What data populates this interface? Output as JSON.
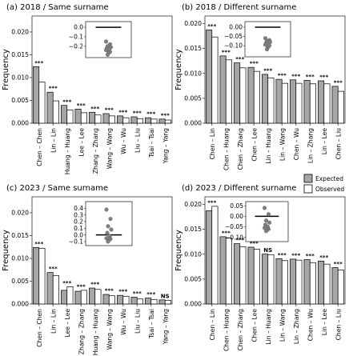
{
  "chart_data": [
    {
      "type": "bar",
      "title": "(a) 2018 / Same surname",
      "ylabel": "Frequency",
      "ylim": [
        0,
        0.0235
      ],
      "yticks": [
        "0.000",
        "0.005",
        "0.010",
        "0.015",
        "0.020"
      ],
      "categories": [
        "Chen – Chen",
        "Lin – Lin",
        "Huang – Huang",
        "Lee – Lee",
        "Zhang – Zhang",
        "Wang – Wang",
        "Wu – Wu",
        "Liu – Liu",
        "Tsai – Tsai",
        "Yang – Yang"
      ],
      "series": [
        {
          "name": "Expected",
          "values": [
            0.0124,
            0.0068,
            0.0039,
            0.0031,
            0.0024,
            0.0021,
            0.0016,
            0.0014,
            0.0012,
            0.0009
          ]
        },
        {
          "name": "Observed",
          "values": [
            0.009,
            0.0049,
            0.0029,
            0.0023,
            0.0018,
            0.0016,
            0.0012,
            0.001,
            0.0009,
            0.0007
          ]
        }
      ],
      "significance": [
        "***",
        "***",
        "***",
        "***",
        "***",
        "***",
        "***",
        "***",
        "***",
        "***"
      ],
      "inset": {
        "ylim": [
          -0.32,
          0.06
        ],
        "yticks": [
          "0.0",
          "−0.1",
          "−0.2"
        ],
        "line": 0.0,
        "points": [
          -0.15,
          -0.18,
          -0.2,
          -0.21,
          -0.22,
          -0.23,
          -0.24,
          -0.26,
          -0.27,
          -0.29
        ]
      }
    },
    {
      "type": "bar",
      "title": "(b) 2018 / Different surname",
      "ylabel": "Frequency",
      "ylim": [
        0,
        0.0215
      ],
      "yticks": [
        "0.000",
        "0.005",
        "0.010",
        "0.015",
        "0.020"
      ],
      "categories": [
        "Chen – Lin",
        "Chen – Huang",
        "Chen – Zhang",
        "Chen – Lee",
        "Lin – Huang",
        "Lin – Wang",
        "Chen – Wu",
        "Lin – Zhang",
        "Lin – Lee",
        "Chen – Liu"
      ],
      "series": [
        {
          "name": "Expected",
          "values": [
            0.0187,
            0.0135,
            0.0121,
            0.0112,
            0.0098,
            0.0088,
            0.0087,
            0.0086,
            0.0085,
            0.0074
          ]
        },
        {
          "name": "Observed",
          "values": [
            0.0173,
            0.0127,
            0.0111,
            0.0104,
            0.0091,
            0.008,
            0.008,
            0.0079,
            0.0079,
            0.0064
          ]
        }
      ],
      "significance": [
        "***",
        "***",
        "***",
        "***",
        "***",
        "***",
        "***",
        "***",
        "***",
        "***"
      ],
      "inset": {
        "ylim": [
          -0.16,
          0.03
        ],
        "yticks": [
          "0.00",
          "−0.05",
          "−0.10"
        ],
        "line": 0.0,
        "points": [
          -0.06,
          -0.07,
          -0.075,
          -0.08,
          -0.085,
          -0.09,
          -0.095,
          -0.1,
          -0.11,
          -0.12
        ]
      }
    },
    {
      "type": "bar",
      "title": "(c) 2023 / Same surname",
      "ylabel": "Frequency",
      "ylim": [
        0,
        0.0235
      ],
      "yticks": [
        "0.000",
        "0.005",
        "0.010",
        "0.015",
        "0.020"
      ],
      "categories": [
        "Chen – Chen",
        "Lin – Lin",
        "Lee – Lee",
        "Zhang – Zhang",
        "Huang – Huang",
        "Wang – Wang",
        "Wu – Wu",
        "Liu – Liu",
        "Tsai – Tsai",
        "Yang – Yang"
      ],
      "series": [
        {
          "name": "Expected",
          "values": [
            0.0124,
            0.0069,
            0.003,
            0.0028,
            0.0035,
            0.0021,
            0.0019,
            0.0015,
            0.0013,
            0.0009
          ]
        },
        {
          "name": "Observed",
          "values": [
            0.0122,
            0.0062,
            0.0038,
            0.003,
            0.0032,
            0.0018,
            0.0017,
            0.0011,
            0.001,
            0.0008
          ]
        }
      ],
      "significance": [
        "***",
        "***",
        "***",
        "***",
        "***",
        "***",
        "***",
        "***",
        "***",
        "NS"
      ],
      "inset": {
        "ylim": [
          -0.16,
          0.5
        ],
        "yticks": [
          "0.4",
          "0.3",
          "0.2",
          "0.1",
          "0.0",
          "−0.1"
        ],
        "line": 0.0,
        "points": [
          0.38,
          0.24,
          0.13,
          0.08,
          0.03,
          -0.02,
          -0.05,
          -0.06,
          -0.08,
          -0.1
        ]
      }
    },
    {
      "type": "bar",
      "title": "(d) 2023 / Different surname",
      "ylabel": "Frequency",
      "ylim": [
        0,
        0.0215
      ],
      "yticks": [
        "0.000",
        "0.005",
        "0.010",
        "0.015",
        "0.020"
      ],
      "categories": [
        "Chen – Lin",
        "Chen – Huang",
        "Chen – Zhang",
        "Chen – Lee",
        "Lin – Huang",
        "Lin – Wang",
        "Lin – Zhang",
        "Chen – Wu",
        "Lin – Lee",
        "Chen – Liu"
      ],
      "series": [
        {
          "name": "Expected",
          "values": [
            0.0187,
            0.0135,
            0.0121,
            0.0114,
            0.01,
            0.0091,
            0.009,
            0.0089,
            0.0086,
            0.0073
          ]
        },
        {
          "name": "Observed",
          "values": [
            0.0196,
            0.0132,
            0.0115,
            0.011,
            0.0099,
            0.0087,
            0.0088,
            0.0083,
            0.008,
            0.0068
          ]
        }
      ],
      "significance": [
        "***",
        "***",
        "***",
        "***",
        "NS",
        "***",
        "***",
        "***",
        "***",
        "***"
      ],
      "inset": {
        "ylim": [
          -0.12,
          0.07
        ],
        "yticks": [
          "0.05",
          "0.00",
          "−0.05",
          "−0.10"
        ],
        "line": 0.0,
        "points": [
          0.04,
          0.01,
          -0.02,
          -0.03,
          -0.04,
          -0.05,
          -0.055,
          -0.06,
          -0.065,
          -0.07
        ]
      }
    }
  ],
  "legend": {
    "items": [
      {
        "label": "Expected",
        "color": "#a6a6a6"
      },
      {
        "label": "Observed",
        "color": "#ffffff"
      }
    ]
  },
  "colors": {
    "expected": "#a6a6a6",
    "observed": "#ffffff",
    "inset_points": "#7f7f7f"
  }
}
